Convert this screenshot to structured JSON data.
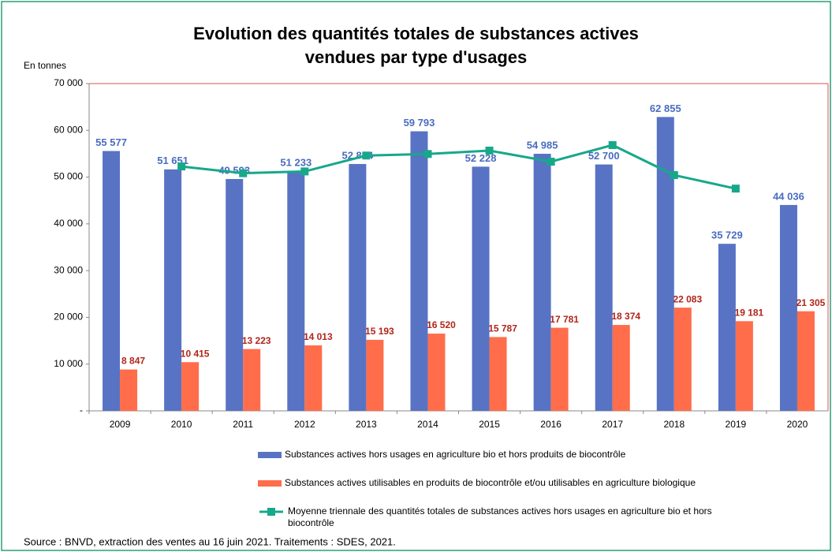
{
  "chart_data": {
    "type": "bar",
    "title": [
      "Evolution des quantités totales de substances actives",
      "vendues par type d'usages"
    ],
    "ylabel": "En tonnes",
    "source": "Source : BNVD, extraction des ventes au 16 juin 2021. Traitements : SDES, 2021.",
    "categories": [
      "2009",
      "2010",
      "2011",
      "2012",
      "2013",
      "2014",
      "2015",
      "2016",
      "2017",
      "2018",
      "2019",
      "2020"
    ],
    "ylim": [
      0,
      70000
    ],
    "yticks": [
      {
        "value": 0,
        "label": "-"
      },
      {
        "value": 10000,
        "label": "10 000"
      },
      {
        "value": 20000,
        "label": "20 000"
      },
      {
        "value": 30000,
        "label": "30 000"
      },
      {
        "value": 40000,
        "label": "40 000"
      },
      {
        "value": 50000,
        "label": "50 000"
      },
      {
        "value": 60000,
        "label": "60 000"
      },
      {
        "value": 70000,
        "label": "70 000"
      }
    ],
    "series": [
      {
        "name": "Substances actives hors usages en agriculture bio et hors produits de biocontrôle",
        "type": "bar",
        "color": "#5873c4",
        "label_color": "#4a6cc0",
        "values": [
          55577,
          51651,
          49593,
          51233,
          52804,
          59793,
          52228,
          54985,
          52700,
          62855,
          35729,
          44036
        ],
        "value_labels": [
          "55 577",
          "51 651",
          "49 593",
          "51 233",
          "52 804",
          "59 793",
          "52 228",
          "54 985",
          "52 700",
          "62 855",
          "35 729",
          "44 036"
        ]
      },
      {
        "name": "Substances actives utilisables en  produits de biocontrôle et/ou utilisables en agriculture biologique",
        "type": "bar",
        "color": "#ff6d4a",
        "label_color": "#b0261a",
        "values": [
          8847,
          10415,
          13223,
          14013,
          15193,
          16520,
          15787,
          17781,
          18374,
          22083,
          19181,
          21305
        ],
        "value_labels": [
          "8 847",
          "10 415",
          "13 223",
          "14 013",
          "15 193",
          "16 520",
          "15 787",
          "17 781",
          "18 374",
          "22 083",
          "19 181",
          "21 305"
        ]
      },
      {
        "name": "Moyenne triennale des quantités totales de substances actives hors usages en agriculture bio et hors biocontrôle",
        "type": "line",
        "color": "#17a88a",
        "values": [
          null,
          52274,
          50826,
          51210,
          54610,
          54942,
          55669,
          53304,
          56847,
          50428,
          47540,
          null
        ]
      }
    ]
  }
}
